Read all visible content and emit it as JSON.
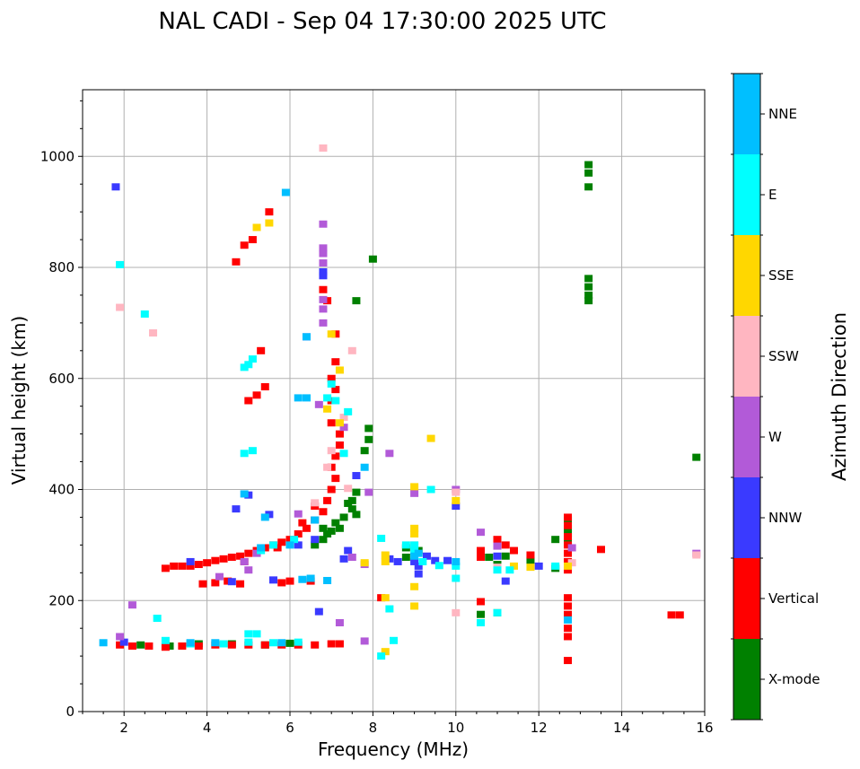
{
  "chart_data": {
    "type": "scatter",
    "title": "NAL CADI - Sep 04 17:30:00 2025 UTC",
    "xlabel": "Frequency (MHz)",
    "ylabel": "Virtual height (km)",
    "xlim": [
      1,
      16
    ],
    "ylim": [
      0,
      1120
    ],
    "xticks": [
      2,
      4,
      6,
      8,
      10,
      12,
      14,
      16
    ],
    "yticks": [
      0,
      200,
      400,
      600,
      800,
      1000
    ],
    "grid": true,
    "colorbar": {
      "title": "Azimuth Direction",
      "entries": [
        {
          "name": "X-mode",
          "color": "#008000"
        },
        {
          "name": "Vertical",
          "color": "#ff0000"
        },
        {
          "name": "NNW",
          "color": "#3a3aff"
        },
        {
          "name": "W",
          "color": "#b25ad8"
        },
        {
          "name": "SSW",
          "color": "#ffb6c1"
        },
        {
          "name": "SSE",
          "color": "#ffd700"
        },
        {
          "name": "E",
          "color": "#00ffff"
        },
        {
          "name": "NNE",
          "color": "#00bfff"
        }
      ]
    },
    "series": [
      {
        "name": "X-mode",
        "color": "#008000",
        "points": [
          [
            13.2,
            985
          ],
          [
            13.2,
            970
          ],
          [
            13.2,
            945
          ],
          [
            13.2,
            780
          ],
          [
            13.2,
            765
          ],
          [
            13.2,
            750
          ],
          [
            13.2,
            740
          ],
          [
            12.7,
            345
          ],
          [
            12.7,
            305
          ],
          [
            12.4,
            310
          ],
          [
            7.9,
            510
          ],
          [
            7.9,
            490
          ],
          [
            7.6,
            395
          ],
          [
            7.5,
            380
          ],
          [
            7.5,
            365
          ],
          [
            7.6,
            355
          ],
          [
            7.3,
            350
          ],
          [
            7.1,
            340
          ],
          [
            7.2,
            330
          ],
          [
            7.4,
            375
          ],
          [
            6.9,
            320
          ],
          [
            6.8,
            310
          ],
          [
            6.6,
            300
          ],
          [
            6.8,
            330
          ],
          [
            7.0,
            325
          ],
          [
            7.6,
            740
          ],
          [
            8.0,
            815
          ],
          [
            7.8,
            470
          ],
          [
            12.7,
            330
          ],
          [
            12.7,
            320
          ],
          [
            15.8,
            458
          ],
          [
            10.6,
            175
          ],
          [
            11.0,
            178
          ],
          [
            11.2,
            280
          ],
          [
            11.8,
            272
          ],
          [
            10.8,
            278
          ],
          [
            9.1,
            290
          ],
          [
            8.8,
            295
          ],
          [
            3.8,
            122
          ],
          [
            4.6,
            122
          ],
          [
            5.4,
            120
          ],
          [
            6.0,
            123
          ],
          [
            3.1,
            118
          ],
          [
            2.4,
            120
          ],
          [
            8.8,
            278
          ],
          [
            11.0,
            265
          ],
          [
            12.4,
            258
          ]
        ]
      },
      {
        "name": "Vertical",
        "color": "#ff0000",
        "points": [
          [
            12.7,
            350
          ],
          [
            12.7,
            335
          ],
          [
            12.7,
            315
          ],
          [
            12.7,
            300
          ],
          [
            12.7,
            285
          ],
          [
            12.7,
            270
          ],
          [
            12.7,
            255
          ],
          [
            12.7,
            205
          ],
          [
            12.7,
            190
          ],
          [
            12.7,
            175
          ],
          [
            12.7,
            150
          ],
          [
            12.7,
            135
          ],
          [
            12.7,
            92
          ],
          [
            6.0,
            310
          ],
          [
            5.8,
            305
          ],
          [
            5.6,
            300
          ],
          [
            5.4,
            295
          ],
          [
            5.2,
            290
          ],
          [
            5.0,
            285
          ],
          [
            4.8,
            280
          ],
          [
            4.6,
            278
          ],
          [
            4.4,
            275
          ],
          [
            4.2,
            272
          ],
          [
            4.0,
            268
          ],
          [
            3.8,
            265
          ],
          [
            3.6,
            262
          ],
          [
            3.4,
            262
          ],
          [
            3.2,
            262
          ],
          [
            3.0,
            258
          ],
          [
            6.2,
            320
          ],
          [
            6.4,
            330
          ],
          [
            6.6,
            345
          ],
          [
            6.8,
            360
          ],
          [
            6.9,
            380
          ],
          [
            7.0,
            400
          ],
          [
            7.1,
            420
          ],
          [
            7.0,
            440
          ],
          [
            7.1,
            460
          ],
          [
            7.2,
            480
          ],
          [
            7.2,
            500
          ],
          [
            7.0,
            520
          ],
          [
            7.0,
            560
          ],
          [
            7.1,
            580
          ],
          [
            7.0,
            600
          ],
          [
            5.4,
            585
          ],
          [
            5.2,
            570
          ],
          [
            5.0,
            560
          ],
          [
            5.3,
            650
          ],
          [
            5.1,
            850
          ],
          [
            4.9,
            840
          ],
          [
            5.5,
            900
          ],
          [
            4.7,
            810
          ],
          [
            7.1,
            630
          ],
          [
            6.9,
            740
          ],
          [
            6.8,
            760
          ],
          [
            7.1,
            680
          ],
          [
            3.9,
            230
          ],
          [
            4.2,
            232
          ],
          [
            4.5,
            235
          ],
          [
            5.8,
            232
          ],
          [
            6.5,
            235
          ],
          [
            6.0,
            235
          ],
          [
            4.8,
            230
          ],
          [
            1.9,
            120
          ],
          [
            2.2,
            118
          ],
          [
            2.6,
            118
          ],
          [
            3.0,
            116
          ],
          [
            3.4,
            118
          ],
          [
            3.8,
            118
          ],
          [
            4.2,
            120
          ],
          [
            4.6,
            120
          ],
          [
            5.0,
            120
          ],
          [
            5.4,
            120
          ],
          [
            5.8,
            120
          ],
          [
            6.2,
            120
          ],
          [
            6.6,
            120
          ],
          [
            7.0,
            122
          ],
          [
            8.2,
            205
          ],
          [
            10.6,
            290
          ],
          [
            10.6,
            278
          ],
          [
            11.0,
            310
          ],
          [
            11.2,
            300
          ],
          [
            11.4,
            290
          ],
          [
            11.8,
            282
          ],
          [
            13.5,
            292
          ],
          [
            15.2,
            174
          ],
          [
            15.4,
            174
          ],
          [
            10.6,
            198
          ],
          [
            7.2,
            122
          ],
          [
            4.9,
            270
          ],
          [
            5.7,
            295
          ],
          [
            6.3,
            340
          ],
          [
            6.6,
            370
          ]
        ]
      },
      {
        "name": "NNW",
        "color": "#3a3aff",
        "points": [
          [
            9.1,
            262
          ],
          [
            9.1,
            248
          ],
          [
            9.0,
            270
          ],
          [
            9.3,
            280
          ],
          [
            9.5,
            272
          ],
          [
            8.6,
            270
          ],
          [
            8.4,
            275
          ],
          [
            6.8,
            792
          ],
          [
            6.8,
            785
          ],
          [
            6.4,
            675
          ],
          [
            5.5,
            355
          ],
          [
            5.0,
            390
          ],
          [
            4.7,
            365
          ],
          [
            6.7,
            180
          ],
          [
            7.3,
            275
          ],
          [
            7.4,
            290
          ],
          [
            10.0,
            370
          ],
          [
            11.2,
            235
          ],
          [
            12.0,
            262
          ],
          [
            6.2,
            300
          ],
          [
            3.6,
            270
          ],
          [
            6.6,
            310
          ],
          [
            5.6,
            237
          ],
          [
            4.6,
            234
          ],
          [
            2.0,
            125
          ],
          [
            1.8,
            945
          ],
          [
            9.8,
            272
          ],
          [
            11.0,
            280
          ],
          [
            7.6,
            425
          ]
        ]
      },
      {
        "name": "W",
        "color": "#b25ad8",
        "points": [
          [
            6.8,
            878
          ],
          [
            6.8,
            835
          ],
          [
            6.8,
            825
          ],
          [
            6.8,
            808
          ],
          [
            6.8,
            742
          ],
          [
            6.8,
            725
          ],
          [
            6.8,
            700
          ],
          [
            7.3,
            512
          ],
          [
            6.7,
            553
          ],
          [
            8.4,
            465
          ],
          [
            5.2,
            285
          ],
          [
            5.0,
            255
          ],
          [
            4.3,
            243
          ],
          [
            4.9,
            270
          ],
          [
            10.0,
            400
          ],
          [
            9.0,
            393
          ],
          [
            7.9,
            395
          ],
          [
            7.5,
            278
          ],
          [
            10.6,
            323
          ],
          [
            11.0,
            298
          ],
          [
            12.8,
            295
          ],
          [
            15.8,
            285
          ],
          [
            7.8,
            127
          ],
          [
            7.2,
            160
          ],
          [
            6.2,
            356
          ],
          [
            2.2,
            192
          ],
          [
            1.9,
            135
          ],
          [
            7.8,
            265
          ]
        ]
      },
      {
        "name": "SSW",
        "color": "#ffb6c1",
        "points": [
          [
            7.3,
            530
          ],
          [
            7.5,
            650
          ],
          [
            6.8,
            1015
          ],
          [
            1.9,
            728
          ],
          [
            2.7,
            682
          ],
          [
            7.0,
            470
          ],
          [
            6.9,
            440
          ],
          [
            10.0,
            395
          ],
          [
            11.0,
            260
          ],
          [
            12.8,
            268
          ],
          [
            15.8,
            282
          ],
          [
            9.0,
            300
          ],
          [
            10.0,
            178
          ],
          [
            7.4,
            402
          ],
          [
            6.6,
            376
          ]
        ]
      },
      {
        "name": "SSE",
        "color": "#ffd700",
        "points": [
          [
            5.2,
            872
          ],
          [
            5.5,
            880
          ],
          [
            7.0,
            680
          ],
          [
            7.2,
            615
          ],
          [
            7.2,
            520
          ],
          [
            8.3,
            282
          ],
          [
            8.3,
            270
          ],
          [
            9.0,
            330
          ],
          [
            9.0,
            320
          ],
          [
            9.0,
            405
          ],
          [
            9.4,
            492
          ],
          [
            10.0,
            380
          ],
          [
            11.4,
            262
          ],
          [
            11.8,
            260
          ],
          [
            12.7,
            262
          ],
          [
            9.0,
            225
          ],
          [
            7.8,
            268
          ],
          [
            6.9,
            545
          ],
          [
            8.3,
            108
          ],
          [
            8.3,
            205
          ],
          [
            9.0,
            190
          ]
        ]
      },
      {
        "name": "E",
        "color": "#00ffff",
        "points": [
          [
            8.2,
            312
          ],
          [
            8.2,
            100
          ],
          [
            8.4,
            185
          ],
          [
            8.5,
            128
          ],
          [
            9.0,
            290
          ],
          [
            9.0,
            300
          ],
          [
            9.2,
            270
          ],
          [
            9.6,
            263
          ],
          [
            10.0,
            262
          ],
          [
            10.0,
            240
          ],
          [
            10.6,
            160
          ],
          [
            11.3,
            255
          ],
          [
            11.0,
            255
          ],
          [
            12.4,
            262
          ],
          [
            5.1,
            635
          ],
          [
            5.0,
            625
          ],
          [
            4.9,
            620
          ],
          [
            5.1,
            470
          ],
          [
            4.9,
            465
          ],
          [
            7.1,
            560
          ],
          [
            6.9,
            565
          ],
          [
            5.6,
            300
          ],
          [
            5.3,
            290
          ],
          [
            3.0,
            128
          ],
          [
            3.6,
            122
          ],
          [
            4.4,
            122
          ],
          [
            5.0,
            125
          ],
          [
            5.6,
            124
          ],
          [
            6.2,
            125
          ],
          [
            5.0,
            140
          ],
          [
            5.2,
            140
          ],
          [
            2.8,
            168
          ],
          [
            2.5,
            716
          ],
          [
            1.9,
            805
          ],
          [
            6.1,
            310
          ],
          [
            7.3,
            465
          ],
          [
            7.4,
            540
          ],
          [
            9.4,
            400
          ],
          [
            11.0,
            178
          ],
          [
            8.8,
            300
          ],
          [
            7.0,
            590
          ]
        ]
      },
      {
        "name": "NNE",
        "color": "#00bfff",
        "points": [
          [
            6.4,
            565
          ],
          [
            6.2,
            565
          ],
          [
            5.9,
            935
          ],
          [
            12.7,
            165
          ],
          [
            6.5,
            240
          ],
          [
            6.3,
            238
          ],
          [
            6.9,
            236
          ],
          [
            4.9,
            392
          ],
          [
            5.4,
            350
          ],
          [
            9.1,
            285
          ],
          [
            9.0,
            280
          ],
          [
            3.6,
            124
          ],
          [
            4.2,
            124
          ],
          [
            5.8,
            124
          ],
          [
            6.0,
            300
          ],
          [
            5.3,
            295
          ],
          [
            10.0,
            270
          ],
          [
            6.4,
            675
          ],
          [
            1.5,
            124
          ],
          [
            7.8,
            440
          ],
          [
            6.6,
            345
          ]
        ]
      }
    ]
  }
}
